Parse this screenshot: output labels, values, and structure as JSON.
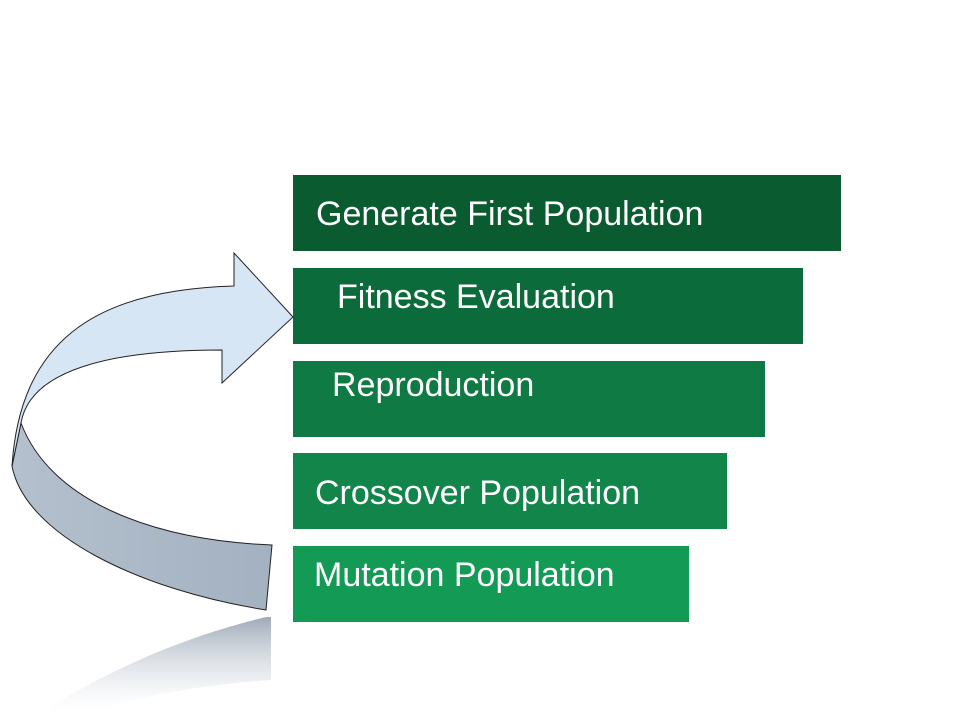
{
  "diagram": {
    "steps": [
      {
        "label": "Generate First Population",
        "color": "#0b5b31"
      },
      {
        "label": "Fitness Evaluation",
        "color": "#0c6b3a"
      },
      {
        "label": "Reproduction",
        "color": "#0f7a43"
      },
      {
        "label": "Crossover Population",
        "color": "#11854a"
      },
      {
        "label": "Mutation Population",
        "color": "#139a55"
      }
    ],
    "loop_arrow": {
      "head_color": "#d6e6f5",
      "tail_color": "#a9b7c7",
      "outline_color": "#222222"
    }
  }
}
